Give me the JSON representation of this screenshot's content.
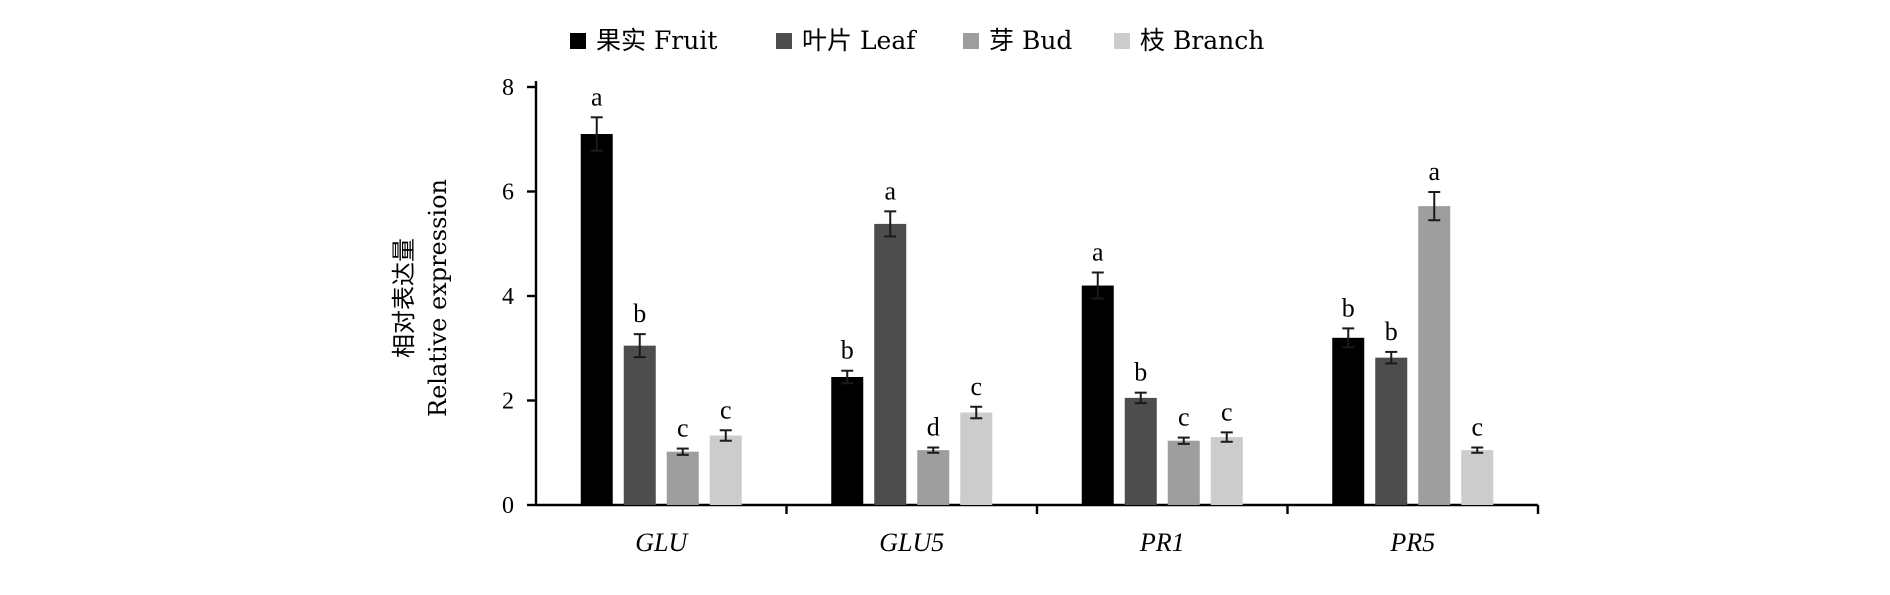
{
  "chart_data": {
    "type": "bar",
    "categories": [
      "GLU",
      "GLU5",
      "PR1",
      "PR5"
    ],
    "series": [
      {
        "name": "果实 Fruit",
        "color": "#000000",
        "values": [
          7.1,
          2.45,
          4.2,
          3.2
        ],
        "errors": [
          0.32,
          0.12,
          0.25,
          0.18
        ],
        "labels": [
          "a",
          "b",
          "a",
          "b"
        ]
      },
      {
        "name": "叶片 Leaf",
        "color": "#4d4d4d",
        "values": [
          3.05,
          5.38,
          2.05,
          2.82
        ],
        "errors": [
          0.22,
          0.24,
          0.1,
          0.11
        ],
        "labels": [
          "b",
          "a",
          "b",
          "b"
        ]
      },
      {
        "name": "芽 Bud",
        "color": "#9e9e9e",
        "values": [
          1.02,
          1.05,
          1.23,
          5.72
        ],
        "errors": [
          0.06,
          0.05,
          0.06,
          0.27
        ],
        "labels": [
          "c",
          "d",
          "c",
          "a"
        ]
      },
      {
        "name": "枝 Branch",
        "color": "#cccccc",
        "values": [
          1.33,
          1.77,
          1.3,
          1.05
        ],
        "errors": [
          0.1,
          0.11,
          0.09,
          0.05
        ],
        "labels": [
          "c",
          "c",
          "c",
          "c"
        ]
      }
    ],
    "ylim": [
      0,
      8
    ],
    "yticks": [
      0,
      2,
      4,
      6,
      8
    ],
    "ylabel_cn": "相对表达量",
    "ylabel_en": "Relative expression",
    "xlabel": "",
    "title": "",
    "legend_position": "top-center",
    "grid": false
  }
}
